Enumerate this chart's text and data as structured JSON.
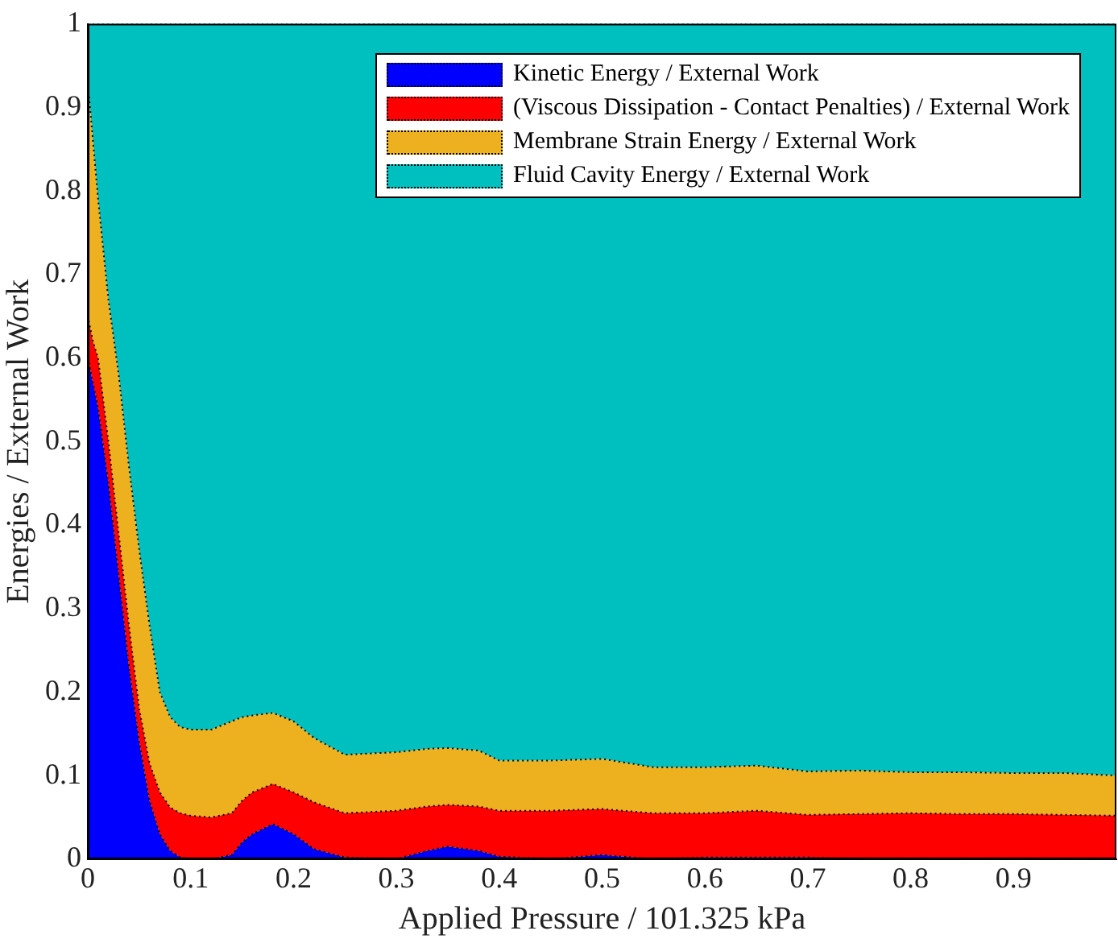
{
  "chart_data": {
    "type": "area",
    "stacked": true,
    "xlabel": "Applied Pressure / 101.325 kPa",
    "ylabel": "Energies / External Work",
    "x": [
      0,
      0.005,
      0.01,
      0.02,
      0.03,
      0.04,
      0.05,
      0.06,
      0.07,
      0.08,
      0.09,
      0.1,
      0.12,
      0.14,
      0.15,
      0.16,
      0.18,
      0.2,
      0.22,
      0.25,
      0.3,
      0.33,
      0.35,
      0.38,
      0.4,
      0.45,
      0.5,
      0.55,
      0.6,
      0.65,
      0.7,
      0.75,
      0.8,
      0.85,
      0.9,
      0.95,
      1.0
    ],
    "series": [
      {
        "name": "Kinetic Energy / External Work",
        "color": "#0000ff",
        "values": [
          0.6,
          0.57,
          0.54,
          0.45,
          0.34,
          0.23,
          0.14,
          0.07,
          0.03,
          0.01,
          0.002,
          0,
          0,
          0.005,
          0.02,
          0.03,
          0.042,
          0.03,
          0.012,
          0.002,
          0,
          0.01,
          0.015,
          0.01,
          0.003,
          0,
          0.005,
          0,
          0.002,
          0.002,
          0.002,
          0,
          0,
          0,
          0,
          0,
          0
        ]
      },
      {
        "name": "(Viscous Dissipation - Contact Penalties) / External Work",
        "color": "#ff0000",
        "values": [
          0.05,
          0.05,
          0.06,
          0.05,
          0.05,
          0.05,
          0.04,
          0.045,
          0.05,
          0.052,
          0.053,
          0.052,
          0.05,
          0.05,
          0.05,
          0.05,
          0.048,
          0.05,
          0.056,
          0.053,
          0.058,
          0.053,
          0.05,
          0.053,
          0.055,
          0.058,
          0.055,
          0.055,
          0.053,
          0.056,
          0.051,
          0.054,
          0.055,
          0.054,
          0.054,
          0.053,
          0.052
        ]
      },
      {
        "name": "Membrane Strain Energy / External Work",
        "color": "#edb120",
        "values": [
          0.28,
          0.24,
          0.19,
          0.17,
          0.19,
          0.19,
          0.19,
          0.165,
          0.12,
          0.108,
          0.103,
          0.103,
          0.105,
          0.11,
          0.1,
          0.092,
          0.085,
          0.085,
          0.077,
          0.07,
          0.07,
          0.069,
          0.068,
          0.067,
          0.06,
          0.06,
          0.06,
          0.055,
          0.055,
          0.054,
          0.052,
          0.052,
          0.049,
          0.05,
          0.049,
          0.05,
          0.048
        ]
      },
      {
        "name": "Fluid Cavity Energy / External Work",
        "color": "#00bfbf",
        "values": [
          0.07,
          0.14,
          0.21,
          0.33,
          0.42,
          0.53,
          0.63,
          0.72,
          0.8,
          0.83,
          0.842,
          0.845,
          0.845,
          0.835,
          0.83,
          0.828,
          0.825,
          0.835,
          0.855,
          0.875,
          0.872,
          0.868,
          0.867,
          0.87,
          0.882,
          0.882,
          0.88,
          0.89,
          0.89,
          0.888,
          0.895,
          0.894,
          0.896,
          0.896,
          0.897,
          0.897,
          0.9
        ]
      }
    ],
    "xlim": [
      0,
      1
    ],
    "xticks": [
      0,
      0.1,
      0.2,
      0.3,
      0.4,
      0.5,
      0.6,
      0.7,
      0.8,
      0.9
    ],
    "ylim": [
      0,
      1
    ],
    "yticks": [
      0,
      0.1,
      0.2,
      0.3,
      0.4,
      0.5,
      0.6,
      0.7,
      0.8,
      0.9,
      1
    ],
    "grid": false,
    "legend": "top right",
    "line_style": "dotted"
  }
}
